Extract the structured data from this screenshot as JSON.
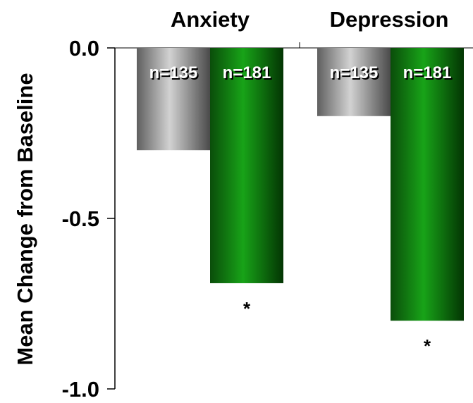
{
  "chart_data": {
    "type": "bar",
    "categories": [
      "Anxiety",
      "Depression"
    ],
    "series": [
      {
        "values": [
          -0.3,
          -0.2
        ],
        "n_labels": [
          "n=135",
          "n=135"
        ],
        "annotations": [
          "",
          ""
        ],
        "color": "#9a9a9a"
      },
      {
        "values": [
          -0.69,
          -0.8
        ],
        "n_labels": [
          "n=181",
          "n=181"
        ],
        "annotations": [
          "*",
          "*"
        ],
        "color": "#0a7a0a"
      }
    ],
    "ylabel": "Mean Change from Baseline",
    "ylim": [
      -1.0,
      0.0
    ],
    "yticks": [
      0.0,
      -0.5,
      -1.0
    ],
    "ytick_labels": [
      "0.0",
      "-0.5",
      "-1.0"
    ],
    "grid": false,
    "legend": "none"
  }
}
